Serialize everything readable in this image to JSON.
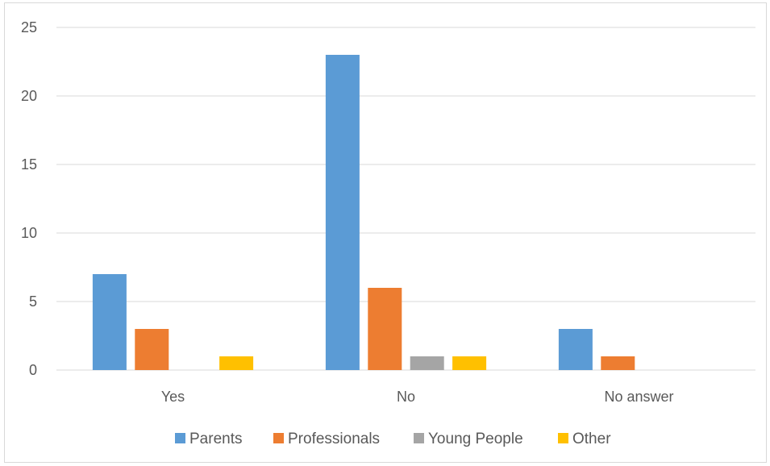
{
  "chart_data": {
    "type": "bar",
    "categories": [
      "Yes",
      "No",
      "No answer"
    ],
    "series": [
      {
        "name": "Parents",
        "values": [
          7,
          23,
          3
        ],
        "color": "#5b9bd5"
      },
      {
        "name": "Professionals",
        "values": [
          3,
          6,
          1
        ],
        "color": "#ed7d31"
      },
      {
        "name": "Young People",
        "values": [
          0,
          1,
          0
        ],
        "color": "#a5a5a5"
      },
      {
        "name": "Other",
        "values": [
          1,
          1,
          0
        ],
        "color": "#ffc000"
      }
    ],
    "ylim": [
      0,
      25
    ],
    "yticks": [
      0,
      5,
      10,
      15,
      20,
      25
    ],
    "grid": true,
    "legend_position": "bottom"
  }
}
